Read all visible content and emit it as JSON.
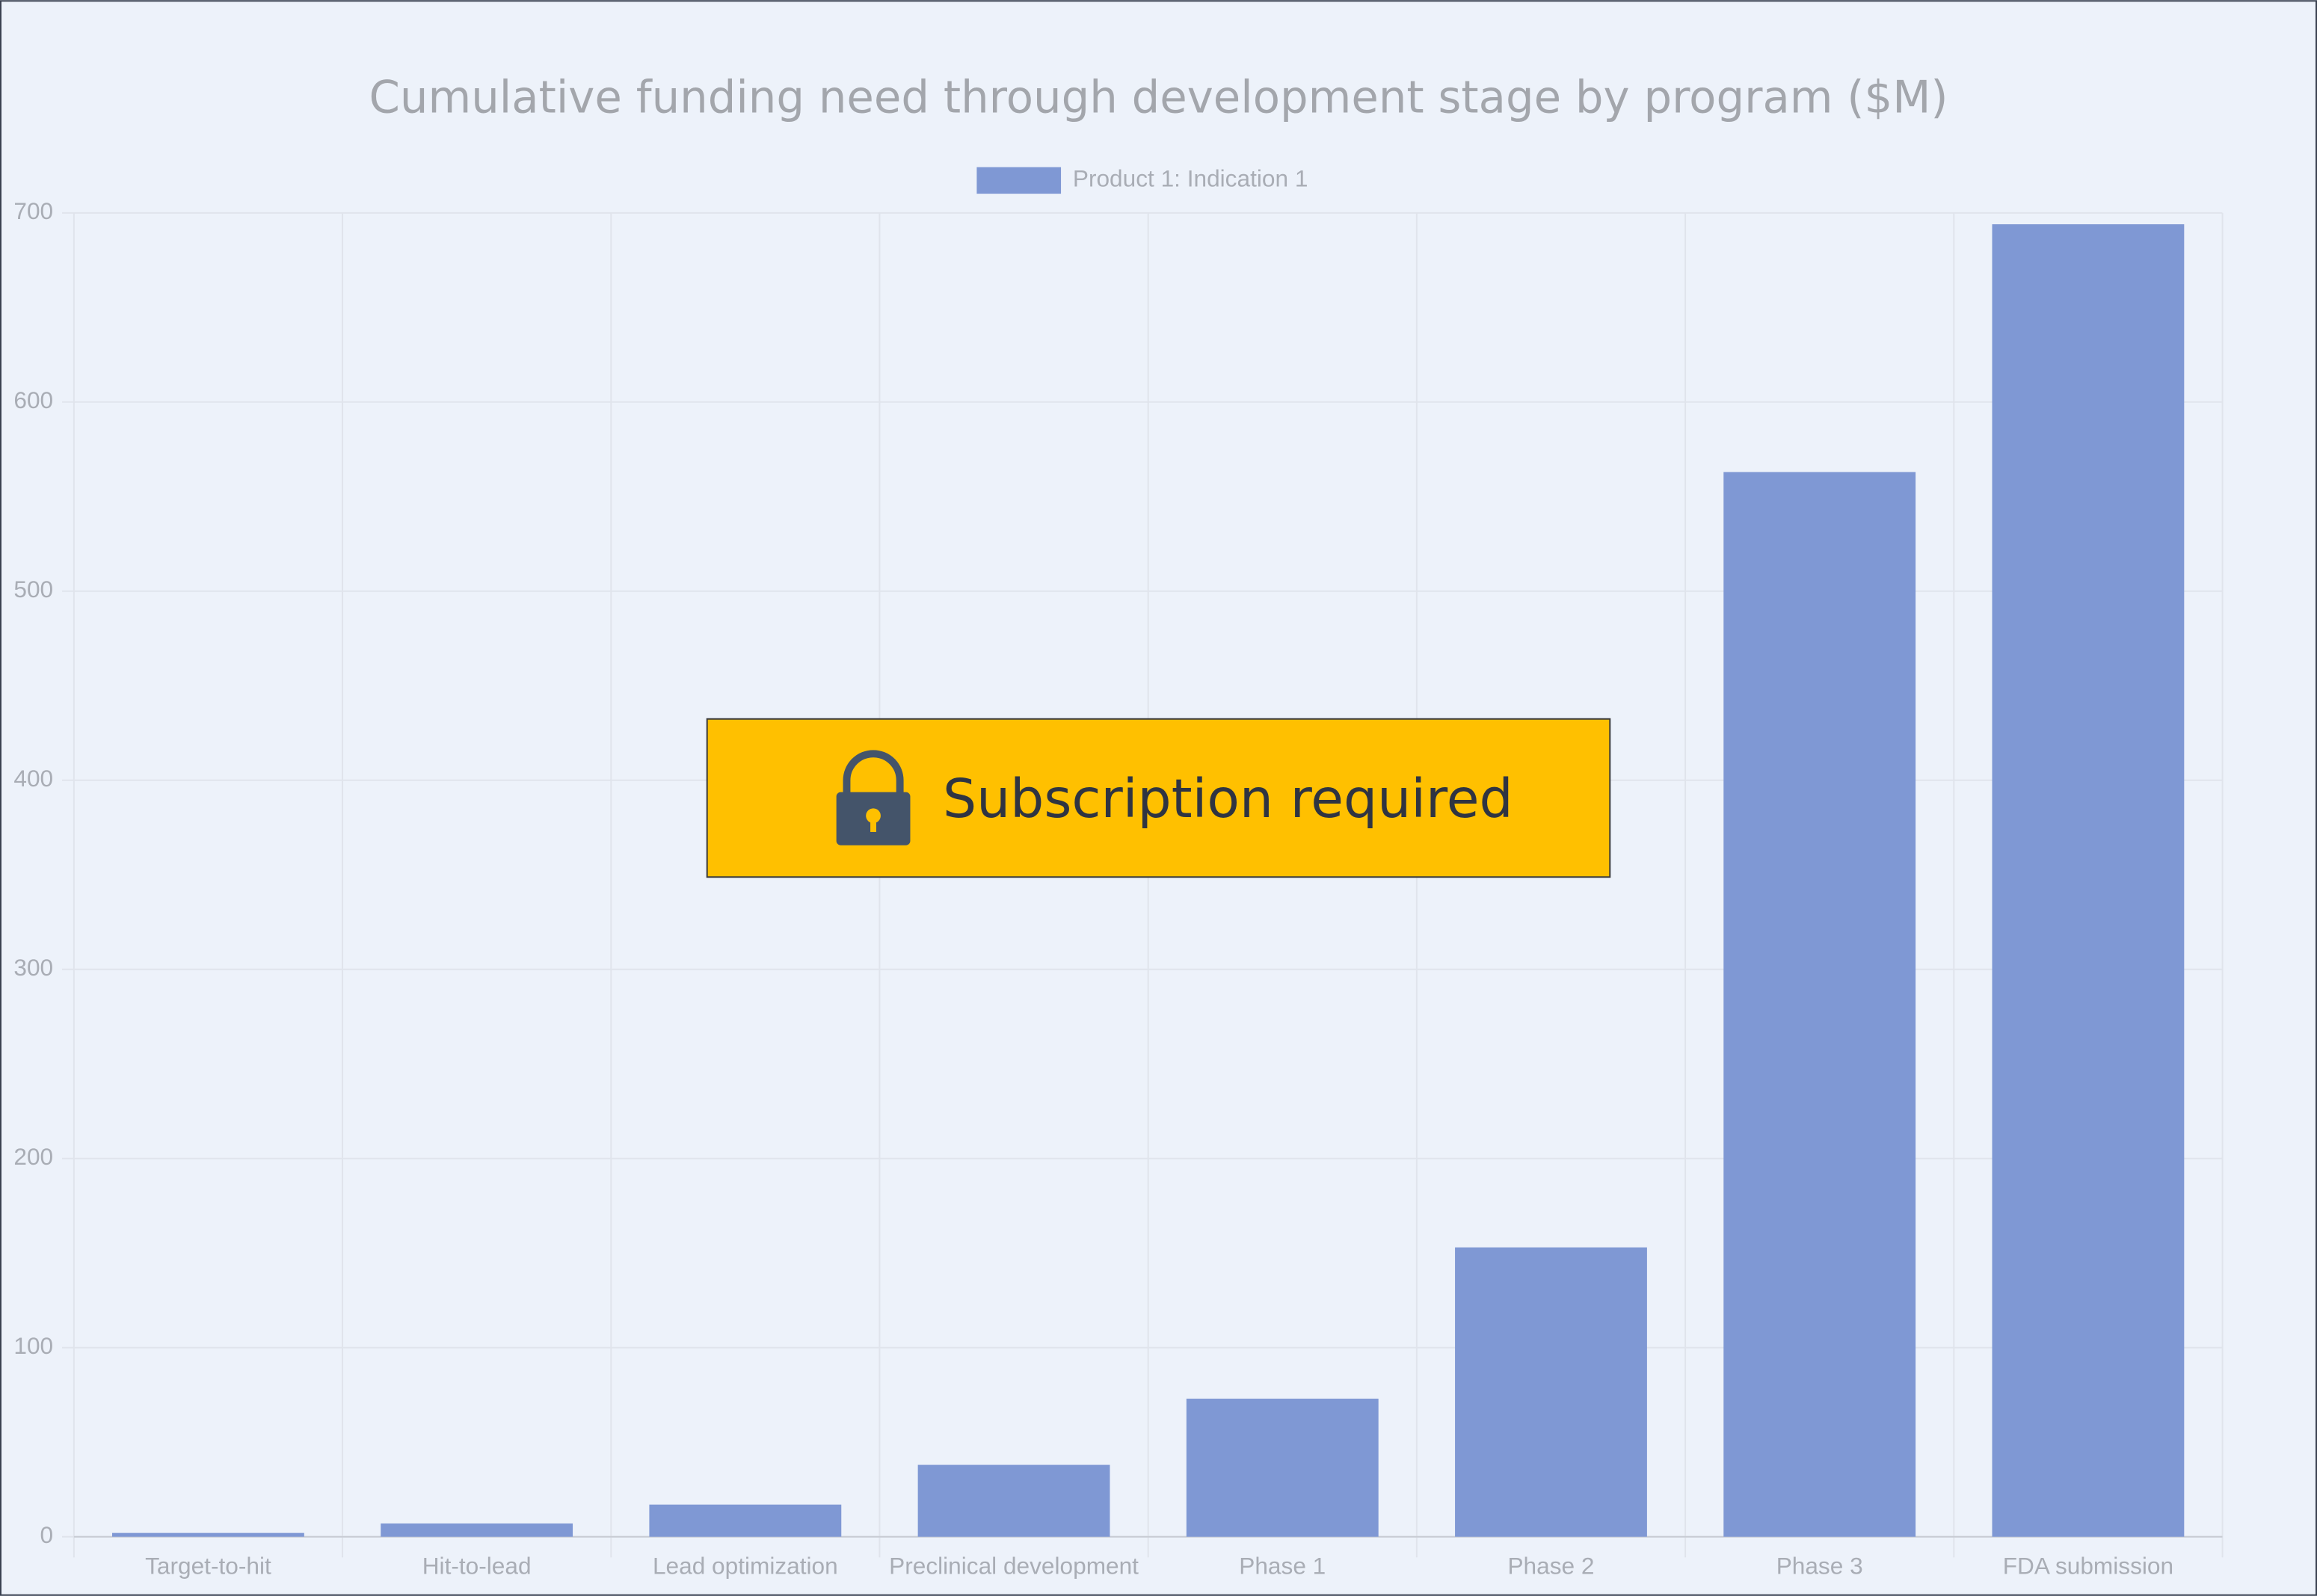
{
  "chart_data": {
    "type": "bar",
    "title": "Cumulative funding need through development stage by program ($M)",
    "categories": [
      "Target-to-hit",
      "Hit-to-lead",
      "Lead optimization",
      "Preclinical development",
      "Phase 1",
      "Phase 2",
      "Phase 3",
      "FDA submission"
    ],
    "series": [
      {
        "name": "Product 1: Indication 1",
        "color": "#7f98d4",
        "values": [
          2,
          7,
          17,
          38,
          73,
          153,
          563,
          694
        ]
      }
    ],
    "ylim": [
      0,
      700
    ],
    "yticks": [
      0,
      100,
      200,
      300,
      400,
      500,
      600,
      700
    ],
    "grid": true
  },
  "overlay": {
    "text": "Subscription required"
  }
}
